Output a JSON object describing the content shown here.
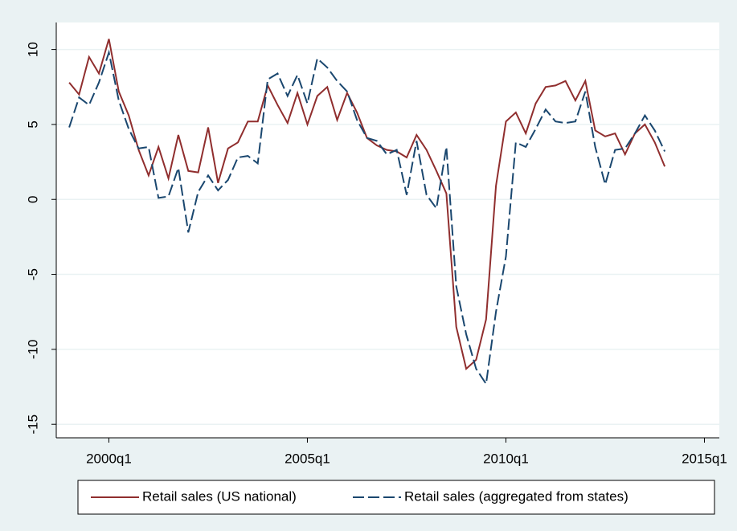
{
  "chart_data": {
    "type": "line",
    "x": [
      156,
      157,
      158,
      159,
      160,
      161,
      162,
      163,
      164,
      165,
      166,
      167,
      168,
      169,
      170,
      171,
      172,
      173,
      174,
      175,
      176,
      177,
      178,
      179,
      180,
      181,
      182,
      183,
      184,
      185,
      186,
      187,
      188,
      189,
      190,
      191,
      192,
      193,
      194,
      195,
      196,
      197,
      198,
      199,
      200,
      201,
      202,
      203,
      204,
      205,
      206,
      207,
      208,
      209,
      210,
      211,
      212,
      213,
      214,
      215,
      216
    ],
    "series": [
      {
        "name": "Retail sales (US national)",
        "color": "#902e2e",
        "dash": false,
        "values": [
          7.8,
          7.0,
          9.5,
          8.4,
          10.7,
          7.2,
          5.6,
          3.3,
          1.6,
          3.5,
          1.4,
          4.3,
          1.9,
          1.8,
          4.8,
          1.1,
          3.4,
          3.8,
          5.2,
          5.2,
          7.6,
          6.3,
          5.1,
          7.1,
          5.0,
          6.9,
          7.5,
          5.3,
          7.1,
          5.8,
          4.1,
          3.6,
          3.3,
          3.2,
          2.8,
          4.3,
          3.3,
          1.9,
          0.4,
          -8.5,
          -11.3,
          -10.7,
          -8.0,
          0.9,
          5.2,
          5.8,
          4.4,
          6.4,
          7.5,
          7.6,
          7.9,
          6.6,
          7.9,
          4.6,
          4.2,
          4.4,
          3.0,
          4.4,
          5.0,
          3.8,
          2.2
        ]
      },
      {
        "name": "Retail sales (aggregated from states)",
        "color": "#1a476f",
        "dash": true,
        "values": [
          4.8,
          6.8,
          6.3,
          7.8,
          9.8,
          6.6,
          4.7,
          3.4,
          3.5,
          0.1,
          0.2,
          2.1,
          -2.2,
          0.5,
          1.6,
          0.6,
          1.3,
          2.8,
          2.9,
          2.4,
          8.0,
          8.4,
          6.9,
          8.3,
          6.4,
          9.4,
          8.8,
          7.9,
          7.2,
          5.3,
          4.1,
          3.9,
          3.0,
          3.3,
          0.3,
          3.9,
          0.3,
          -0.6,
          3.5,
          -5.8,
          -9.0,
          -11.3,
          -12.3,
          -7.5,
          -3.8,
          3.8,
          3.5,
          4.7,
          6.0,
          5.2,
          5.1,
          5.2,
          7.2,
          3.5,
          1.0,
          3.3,
          3.4,
          4.4,
          5.6,
          4.6,
          3.2
        ]
      }
    ],
    "xlim": [
      154.7,
      221.5
    ],
    "xticks": [
      {
        "value": 160,
        "label": "2000q1"
      },
      {
        "value": 180,
        "label": "2005q1"
      },
      {
        "value": 200,
        "label": "2010q1"
      },
      {
        "value": 220,
        "label": "2015q1"
      }
    ],
    "ylim": [
      -15.9,
      11.8
    ],
    "yticks": [
      -15,
      -10,
      -5,
      0,
      5,
      10
    ],
    "grid": true,
    "legend": "bottom"
  }
}
